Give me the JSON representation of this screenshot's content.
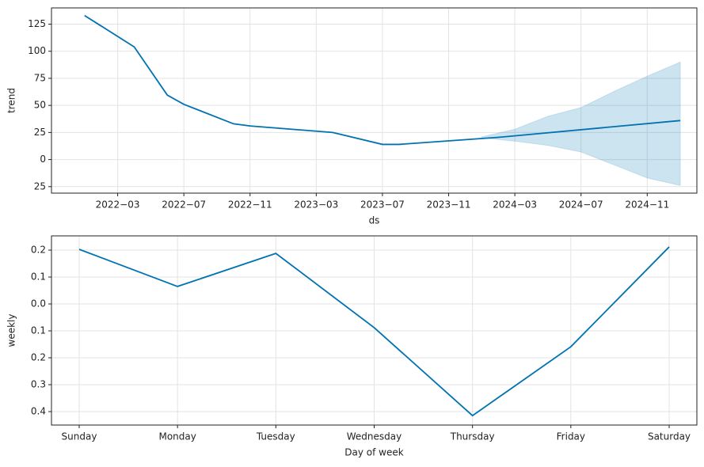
{
  "chart_data": [
    {
      "type": "line",
      "ylabel": "trend",
      "xlabel": "ds",
      "color": "#0072B2",
      "grid": true,
      "x": [
        "2022-01",
        "2022-04",
        "2022-06",
        "2022-07",
        "2022-10",
        "2022-11",
        "2023-04",
        "2023-07",
        "2023-08",
        "2024-02",
        "2025-01"
      ],
      "values": [
        133,
        104,
        59.5,
        51,
        33,
        31,
        25,
        14,
        14,
        20.5,
        36
      ],
      "band": {
        "x": [
          "2024-01",
          "2024-03",
          "2024-05",
          "2024-07",
          "2024-09",
          "2024-11",
          "2025-01"
        ],
        "upper": [
          21,
          28,
          40,
          48,
          63,
          77,
          90
        ],
        "lower": [
          20,
          17,
          13,
          7,
          -5,
          -17,
          -24
        ]
      },
      "xlim": [
        "2021-11",
        "2025-02"
      ],
      "ylim": [
        -31,
        140
      ],
      "xticks": [
        {
          "value": "2022-03",
          "label": "2022−03"
        },
        {
          "value": "2022-07",
          "label": "2022−07"
        },
        {
          "value": "2022-11",
          "label": "2022−11"
        },
        {
          "value": "2023-03",
          "label": "2023−03"
        },
        {
          "value": "2023-07",
          "label": "2023−07"
        },
        {
          "value": "2023-11",
          "label": "2023−11"
        },
        {
          "value": "2024-03",
          "label": "2024−03"
        },
        {
          "value": "2024-07",
          "label": "2024−07"
        },
        {
          "value": "2024-11",
          "label": "2024−11"
        }
      ],
      "yticks": [
        {
          "value": -25,
          "label": "25"
        },
        0,
        25,
        50,
        75,
        100,
        125
      ]
    },
    {
      "type": "line",
      "ylabel": "weekly",
      "xlabel": "Day of week",
      "color": "#0072B2",
      "grid": true,
      "categories": [
        "Sunday",
        "Monday",
        "Tuesday",
        "Wednesday",
        "Thursday",
        "Friday",
        "Saturday"
      ],
      "values": [
        0.203,
        0.065,
        0.188,
        -0.088,
        -0.415,
        -0.159,
        0.212
      ],
      "ylim": [
        -0.45,
        0.253
      ],
      "yticks": [
        {
          "value": -0.4,
          "label": "0.4"
        },
        {
          "value": -0.3,
          "label": "0.3"
        },
        {
          "value": -0.2,
          "label": "0.2"
        },
        {
          "value": -0.1,
          "label": "0.1"
        },
        {
          "value": 0,
          "label": "0.0"
        },
        0.1,
        0.2
      ]
    }
  ]
}
